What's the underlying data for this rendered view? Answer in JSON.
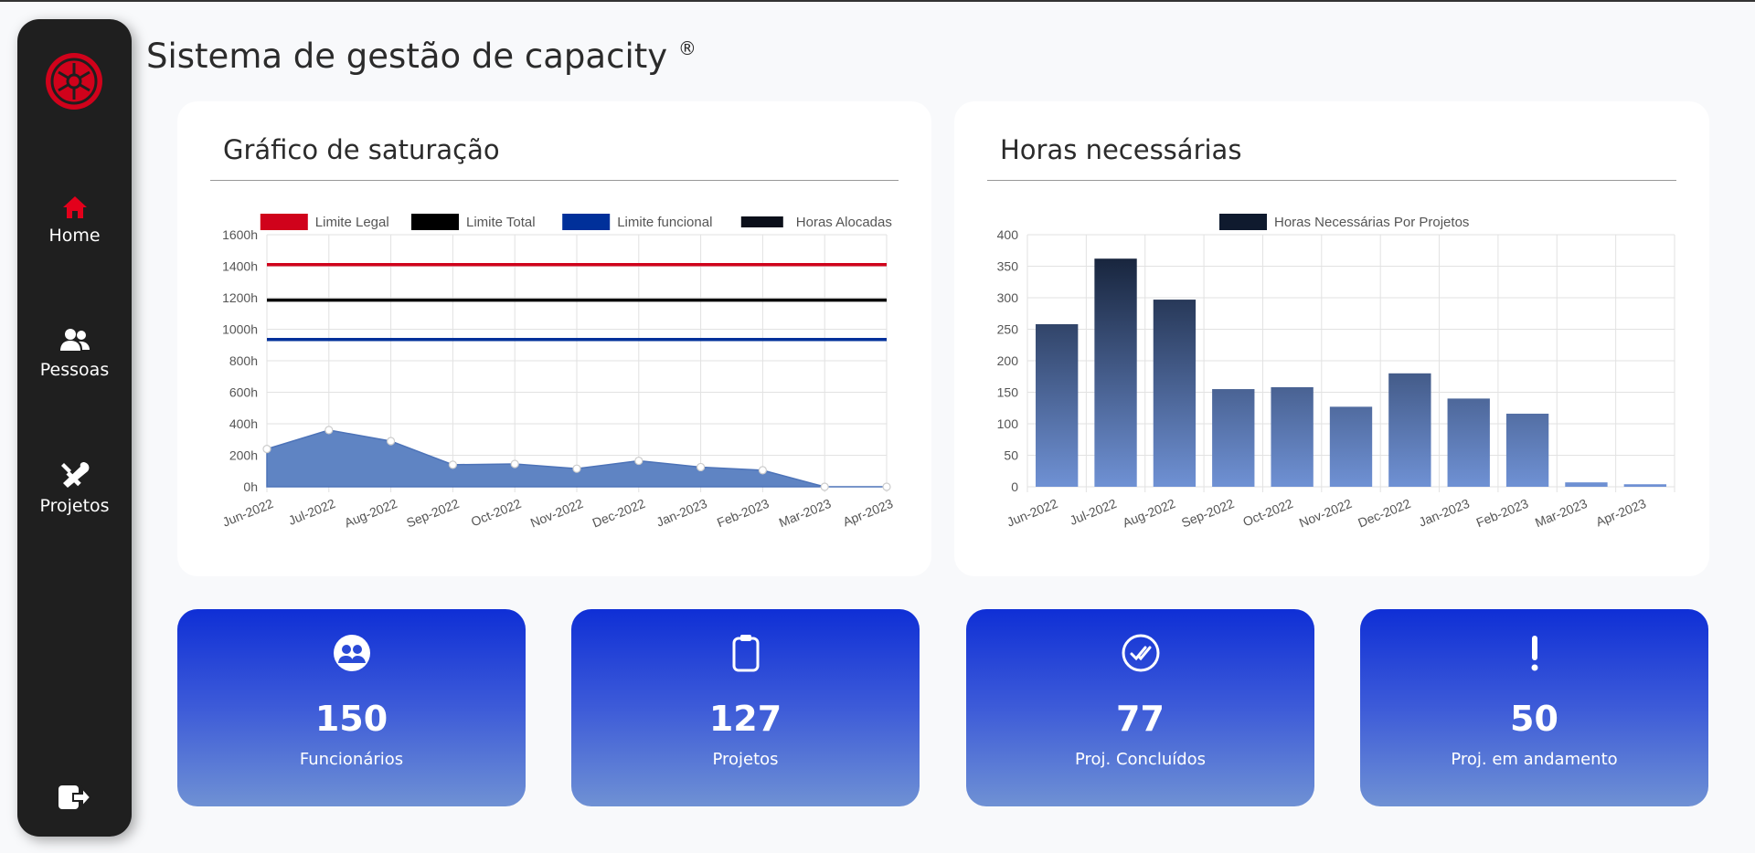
{
  "app": {
    "title": "Sistema de gestão de capacity",
    "title_mark": "®"
  },
  "sidebar": {
    "items": [
      {
        "label": "Home",
        "icon": "home-icon",
        "color": "#e3001b"
      },
      {
        "label": "Pessoas",
        "icon": "users-icon",
        "color": "#ffffff"
      },
      {
        "label": "Projetos",
        "icon": "tools-icon",
        "color": "#ffffff"
      }
    ],
    "logout_icon": "logout-icon"
  },
  "saturation_card": {
    "title": "Gráfico de saturação"
  },
  "hours_card": {
    "title": "Horas necessárias"
  },
  "chart_data": [
    {
      "type": "line",
      "title": "Gráfico de saturação",
      "categories": [
        "Jun-2022",
        "Jul-2022",
        "Aug-2022",
        "Sep-2022",
        "Oct-2022",
        "Nov-2022",
        "Dec-2022",
        "Jan-2023",
        "Feb-2023",
        "Mar-2023",
        "Apr-2023"
      ],
      "ylim": [
        0,
        1600
      ],
      "yticks": [
        "0h",
        "200h",
        "400h",
        "600h",
        "800h",
        "1000h",
        "1200h",
        "1400h",
        "1600h"
      ],
      "grid": true,
      "legend": "top",
      "series": [
        {
          "name": "Limite Legal",
          "color": "#d0021b",
          "values": [
            1410,
            1410,
            1410,
            1410,
            1410,
            1410,
            1410,
            1410,
            1410,
            1410,
            1410
          ]
        },
        {
          "name": "Limite Total",
          "color": "#000000",
          "values": [
            1185,
            1185,
            1185,
            1185,
            1185,
            1185,
            1185,
            1185,
            1185,
            1185,
            1185
          ]
        },
        {
          "name": "Limite funcional",
          "color": "#00309a",
          "values": [
            935,
            935,
            935,
            935,
            935,
            935,
            935,
            935,
            935,
            935,
            935
          ]
        },
        {
          "name": "Horas Alocadas",
          "color": "#5f84c3",
          "fill": true,
          "values": [
            240,
            360,
            290,
            140,
            145,
            115,
            165,
            125,
            105,
            0,
            0
          ]
        }
      ]
    },
    {
      "type": "bar",
      "title": "Horas necessárias",
      "categories": [
        "Jun-2022",
        "Jul-2022",
        "Aug-2022",
        "Sep-2022",
        "Oct-2022",
        "Nov-2022",
        "Dec-2022",
        "Jan-2023",
        "Feb-2023",
        "Mar-2023",
        "Apr-2023"
      ],
      "ylim": [
        0,
        400
      ],
      "yticks": [
        "0",
        "50",
        "100",
        "150",
        "200",
        "250",
        "300",
        "350",
        "400"
      ],
      "grid": true,
      "legend": "top",
      "series": [
        {
          "name": "Horas Necessárias Por Projetos",
          "color": "#0f1a2e",
          "values": [
            258,
            362,
            297,
            155,
            158,
            127,
            180,
            140,
            116,
            7,
            4
          ]
        }
      ]
    }
  ],
  "stats": [
    {
      "value": "150",
      "label": "Funcionários",
      "icon": "people-circle-icon"
    },
    {
      "value": "127",
      "label": "Projetos",
      "icon": "clipboard-icon"
    },
    {
      "value": "77",
      "label": "Proj. Concluídos",
      "icon": "double-check-icon"
    },
    {
      "value": "50",
      "label": "Proj. em andamento",
      "icon": "exclamation-icon"
    }
  ]
}
